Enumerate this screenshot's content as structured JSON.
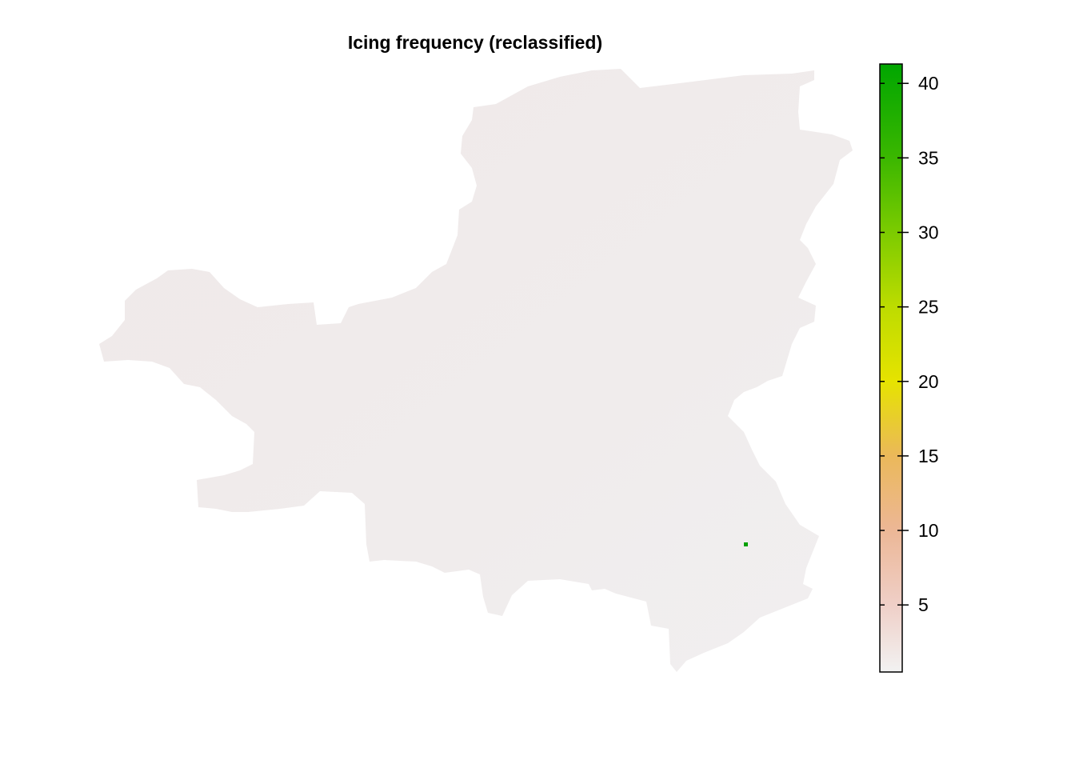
{
  "title": "Icing frequency (reclassified)",
  "legend": {
    "min": 0.5,
    "max": 41.3,
    "ticks": [
      5,
      10,
      15,
      20,
      25,
      30,
      35,
      40
    ],
    "tick_labels": [
      "5",
      "10",
      "15",
      "20",
      "25",
      "30",
      "35",
      "40"
    ],
    "colors": [
      {
        "value": 0.5,
        "color": "#F2F2F2"
      },
      {
        "value": 5,
        "color": "#EFCFC7"
      },
      {
        "value": 10,
        "color": "#ECB796"
      },
      {
        "value": 15,
        "color": "#EBB85A"
      },
      {
        "value": 20,
        "color": "#E6E300"
      },
      {
        "value": 25,
        "color": "#BDDC00"
      },
      {
        "value": 30,
        "color": "#7CCB00"
      },
      {
        "value": 35,
        "color": "#3BB700"
      },
      {
        "value": 41.3,
        "color": "#00A600"
      }
    ]
  },
  "map": {
    "fill_color": "#F0ECEC",
    "region_value_range": [
      0.5,
      2
    ],
    "highlight_cell": {
      "value": 41,
      "color": "#00A000"
    }
  }
}
